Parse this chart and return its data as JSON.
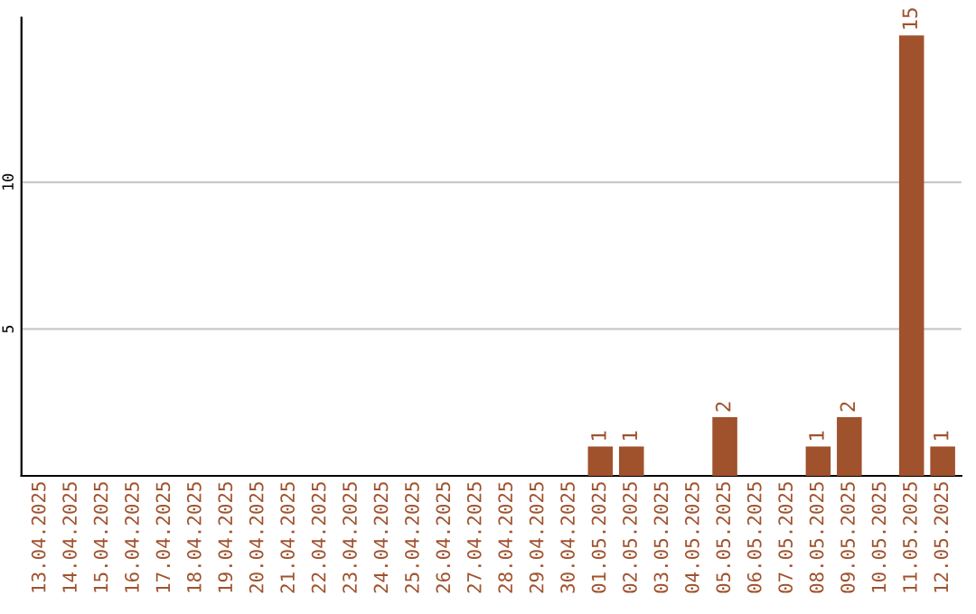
{
  "chart_data": {
    "type": "bar",
    "categories": [
      "13.04.2025",
      "14.04.2025",
      "15.04.2025",
      "16.04.2025",
      "17.04.2025",
      "18.04.2025",
      "19.04.2025",
      "20.04.2025",
      "21.04.2025",
      "22.04.2025",
      "23.04.2025",
      "24.04.2025",
      "25.04.2025",
      "26.04.2025",
      "27.04.2025",
      "28.04.2025",
      "29.04.2025",
      "30.04.2025",
      "01.05.2025",
      "02.05.2025",
      "03.05.2025",
      "04.05.2025",
      "05.05.2025",
      "06.05.2025",
      "07.05.2025",
      "08.05.2025",
      "09.05.2025",
      "10.05.2025",
      "11.05.2025",
      "12.05.2025"
    ],
    "values": [
      0,
      0,
      0,
      0,
      0,
      0,
      0,
      0,
      0,
      0,
      0,
      0,
      0,
      0,
      0,
      0,
      0,
      0,
      1,
      1,
      0,
      0,
      2,
      0,
      0,
      1,
      2,
      0,
      15,
      1
    ],
    "value_labels": [
      null,
      null,
      null,
      null,
      null,
      null,
      null,
      null,
      null,
      null,
      null,
      null,
      null,
      null,
      null,
      null,
      null,
      null,
      "1",
      "1",
      null,
      null,
      "2",
      null,
      null,
      "1",
      "2",
      null,
      "15",
      "1"
    ],
    "color": "#a0522d",
    "ylim": [
      0,
      15.6
    ],
    "yticks": [
      5,
      10
    ],
    "grid": "y",
    "legend": false
  }
}
